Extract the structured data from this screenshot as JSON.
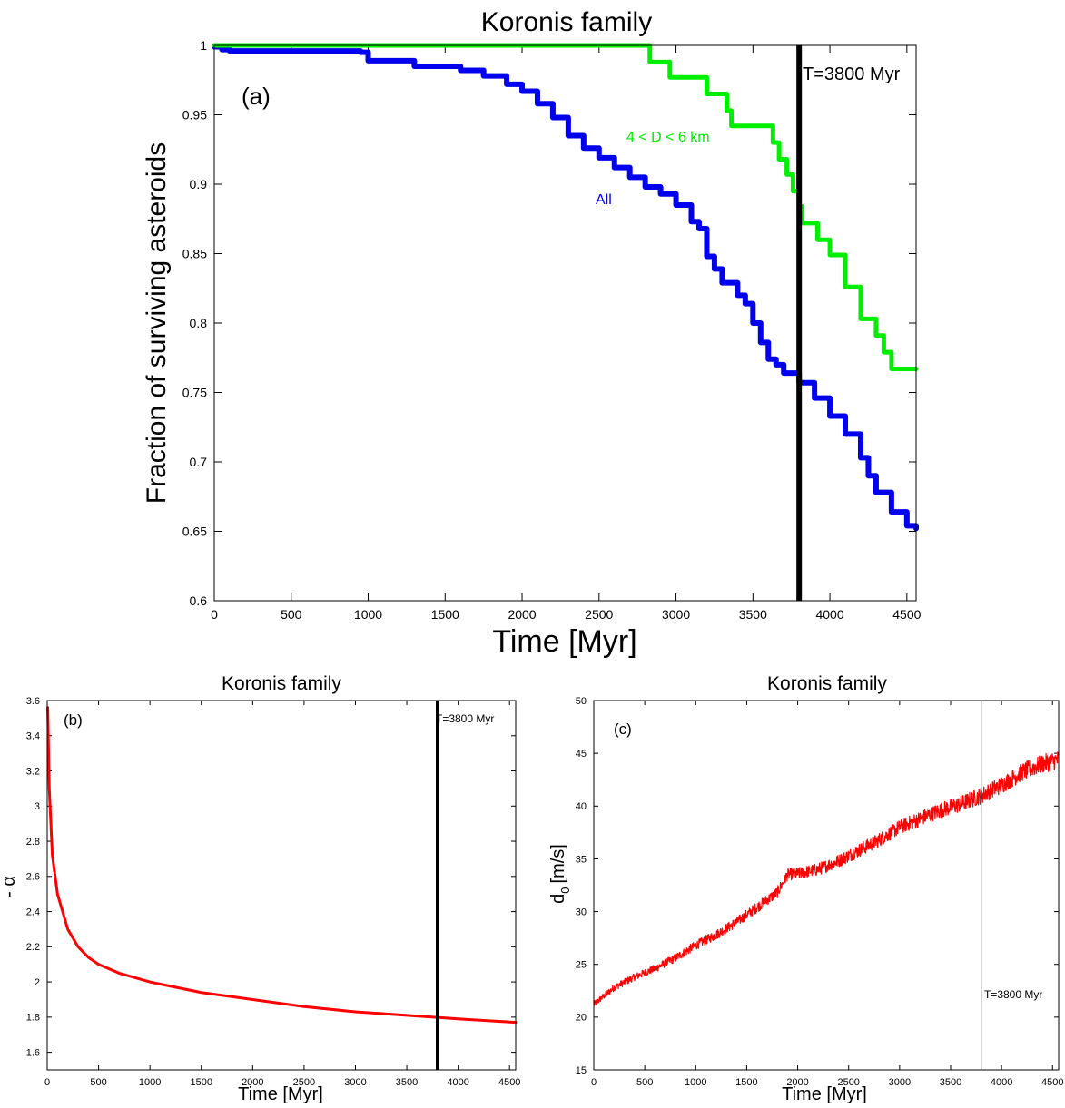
{
  "chart_data": [
    {
      "type": "line",
      "panel_label": "(a)",
      "title": "Koronis family",
      "xlabel": "Time [Myr]",
      "ylabel": "Fraction of surviving asteroids",
      "xlim": [
        0,
        4560
      ],
      "ylim": [
        0.6,
        1.0
      ],
      "xticks": [
        0,
        500,
        1000,
        1500,
        2000,
        2500,
        3000,
        3500,
        4000,
        4500
      ],
      "yticks": [
        0.6,
        0.65,
        0.7,
        0.75,
        0.8,
        0.85,
        0.9,
        0.95,
        1
      ],
      "ytick_labels": [
        "0.6",
        "0.65",
        "0.7",
        "0.75",
        "0.8",
        "0.85",
        "0.9",
        "0.95",
        "1"
      ],
      "grid": false,
      "vline": {
        "x": 3800,
        "label": "T=3800 Myr",
        "color": "#000000"
      },
      "series": [
        {
          "name": "All",
          "color": "#0000ee",
          "step": true,
          "x": [
            0,
            50,
            100,
            400,
            700,
            950,
            1000,
            1300,
            1600,
            1750,
            1900,
            2000,
            2100,
            2200,
            2300,
            2400,
            2500,
            2600,
            2700,
            2800,
            2900,
            3000,
            3100,
            3150,
            3200,
            3250,
            3300,
            3400,
            3450,
            3500,
            3550,
            3600,
            3650,
            3700,
            3800,
            3900,
            4000,
            4100,
            4200,
            4250,
            4300,
            4400,
            4500,
            4560
          ],
          "y": [
            0.999,
            0.997,
            0.996,
            0.996,
            0.996,
            0.995,
            0.989,
            0.985,
            0.982,
            0.978,
            0.972,
            0.967,
            0.958,
            0.948,
            0.935,
            0.926,
            0.919,
            0.912,
            0.905,
            0.898,
            0.893,
            0.885,
            0.873,
            0.868,
            0.848,
            0.839,
            0.829,
            0.82,
            0.814,
            0.8,
            0.786,
            0.774,
            0.77,
            0.764,
            0.757,
            0.746,
            0.733,
            0.72,
            0.703,
            0.69,
            0.678,
            0.664,
            0.654,
            0.652
          ]
        },
        {
          "name": "4 < D < 6 km",
          "color": "#00ee00",
          "step": true,
          "x": [
            0,
            2830,
            2960,
            3200,
            3330,
            3360,
            3630,
            3670,
            3720,
            3760,
            3800,
            3820,
            3920,
            4000,
            4100,
            4200,
            4300,
            4350,
            4400,
            4560
          ],
          "y": [
            1.0,
            0.988,
            0.977,
            0.965,
            0.953,
            0.942,
            0.93,
            0.918,
            0.907,
            0.895,
            0.884,
            0.872,
            0.86,
            0.849,
            0.826,
            0.803,
            0.791,
            0.779,
            0.767,
            0.767
          ]
        }
      ]
    },
    {
      "type": "line",
      "panel_label": "(b)",
      "title": "Koronis family",
      "xlabel": "Time [Myr]",
      "ylabel": "- α",
      "xlim": [
        0,
        4560
      ],
      "ylim": [
        1.5,
        3.6
      ],
      "xticks": [
        0,
        500,
        1000,
        1500,
        2000,
        2500,
        3000,
        3500,
        4000,
        4500
      ],
      "yticks": [
        1.6,
        1.8,
        2,
        2.2,
        2.4,
        2.6,
        2.8,
        3,
        3.2,
        3.4,
        3.6
      ],
      "ytick_labels": [
        "1.6",
        "1.8",
        "2",
        "2.2",
        "2.4",
        "2.6",
        "2.8",
        "3",
        "3.2",
        "3.4",
        "3.6"
      ],
      "grid": false,
      "vline": {
        "x": 3800,
        "label": "T=3800 Myr",
        "color": "#000000"
      },
      "series": [
        {
          "color": "#ff0000",
          "x": [
            5,
            20,
            50,
            100,
            200,
            300,
            400,
            500,
            700,
            1000,
            1500,
            2000,
            2500,
            3000,
            3500,
            4000,
            4560
          ],
          "y": [
            3.56,
            3.1,
            2.72,
            2.5,
            2.3,
            2.2,
            2.14,
            2.1,
            2.05,
            2.0,
            1.94,
            1.9,
            1.86,
            1.83,
            1.81,
            1.79,
            1.77
          ]
        }
      ]
    },
    {
      "type": "line",
      "panel_label": "(c)",
      "title": "Koronis family",
      "xlabel": "Time [Myr]",
      "ylabel": "d",
      "ylabel_sub": "0",
      "ylabel_unit": "[m/s]",
      "xlim": [
        0,
        4560
      ],
      "ylim": [
        15,
        50
      ],
      "xticks": [
        0,
        500,
        1000,
        1500,
        2000,
        2500,
        3000,
        3500,
        4000,
        4500
      ],
      "yticks": [
        15,
        20,
        25,
        30,
        35,
        40,
        45,
        50
      ],
      "ytick_labels": [
        "15",
        "20",
        "25",
        "30",
        "35",
        "40",
        "45",
        "50"
      ],
      "grid": false,
      "vline": {
        "x": 3800,
        "label": "T=3800 Myr",
        "color": "#000000"
      },
      "series": [
        {
          "color": "#ff0000",
          "noisy": true,
          "x": [
            0,
            100,
            200,
            400,
            600,
            800,
            1000,
            1200,
            1400,
            1600,
            1800,
            1900,
            2000,
            2200,
            2400,
            2600,
            2800,
            3000,
            3200,
            3400,
            3600,
            3800,
            4000,
            4200,
            4400,
            4560
          ],
          "y": [
            21.2,
            22.0,
            22.8,
            23.8,
            24.6,
            25.6,
            26.8,
            27.8,
            29.0,
            30.4,
            31.8,
            33.5,
            33.6,
            34.0,
            34.8,
            35.8,
            36.8,
            38.0,
            38.8,
            39.6,
            40.2,
            41.0,
            42.0,
            43.2,
            44.0,
            44.4
          ]
        }
      ]
    }
  ]
}
